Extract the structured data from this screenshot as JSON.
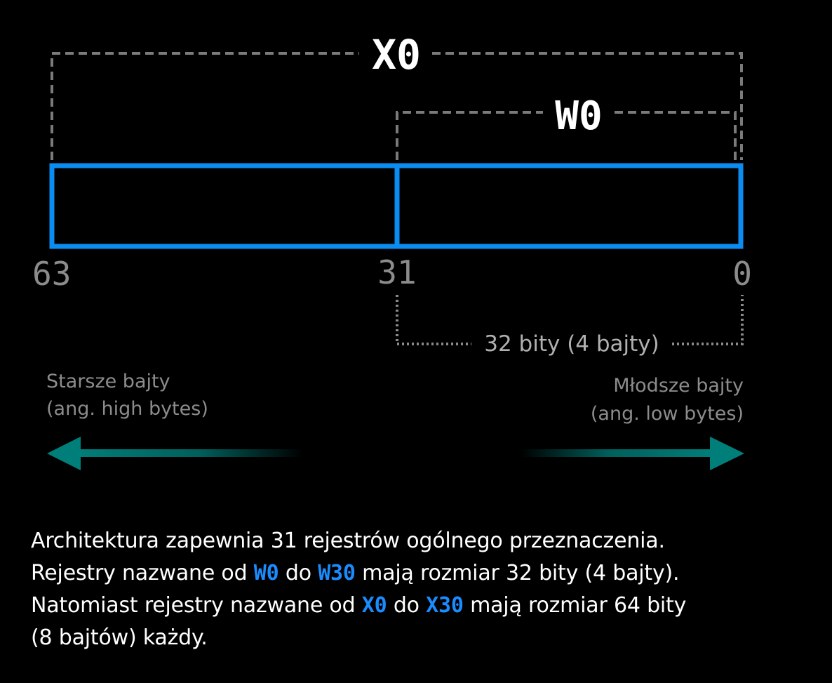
{
  "diagram": {
    "register_x_label": "X0",
    "register_w_label": "W0",
    "bit_high": "63",
    "bit_mid": "31",
    "bit_low": "0",
    "width_note": "32 bity (4 bajty)",
    "high_bytes_line1": "Starsze bajty",
    "high_bytes_line2": "(ang. high bytes)",
    "low_bytes_line1": "Młodsze bajty",
    "low_bytes_line2": "(ang. low bytes)",
    "colors": {
      "register_outline": "#0a8cf0",
      "dashed_bracket": "#7a7a7a",
      "dotted_bracket": "#8a8a8a",
      "bit_labels": "#8c8c8c",
      "note_text": "#b0b0b0",
      "arrow": "#007f7a",
      "register_name_color": "#1a8cff"
    },
    "icons": [
      "arrow-left-icon",
      "arrow-right-icon"
    ]
  },
  "caption": {
    "line1": "Architektura zapewnia 31 rejestrów ogólnego przeznaczenia.",
    "line2_pre": "Rejestry nazwane od ",
    "line2_reg1": "W0",
    "line2_mid": " do ",
    "line2_reg2": "W30",
    "line2_post": " mają rozmiar 32 bity (4 bajty).",
    "line3_pre": "Natomiast rejestry nazwane od ",
    "line3_reg1": "X0",
    "line3_mid": " do ",
    "line3_reg2": "X30",
    "line3_post": " mają rozmiar 64 bity",
    "line4": "(8 bajtów) każdy."
  }
}
